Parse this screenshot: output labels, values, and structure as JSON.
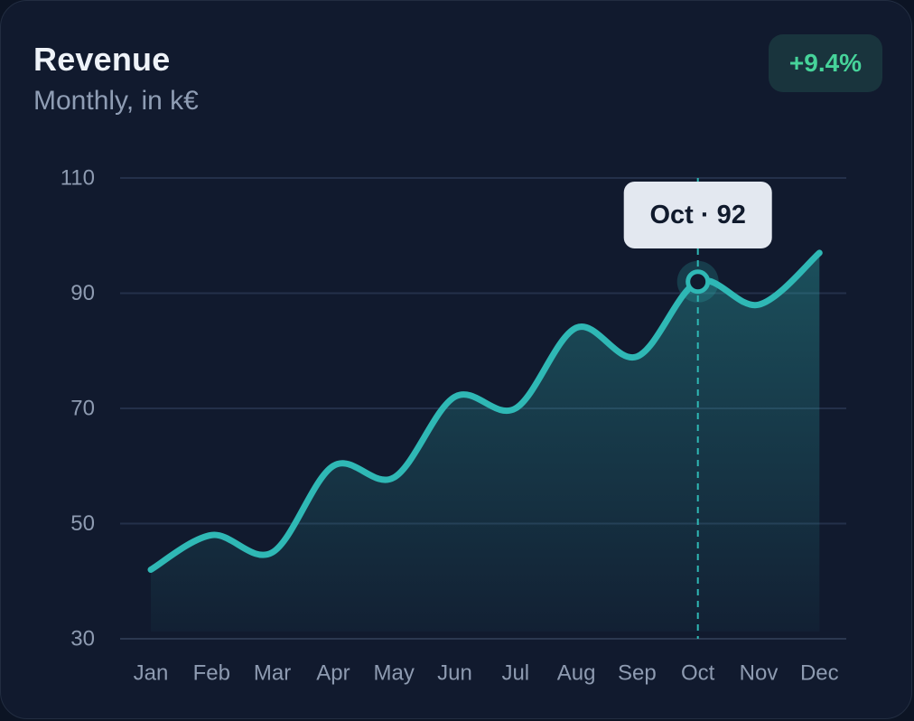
{
  "header": {
    "title": "Revenue",
    "subtitle": "Monthly, in k€",
    "change_badge": "+9.4%"
  },
  "tooltip": {
    "label": "Oct · 92"
  },
  "colors": {
    "background": "#111a2e",
    "line": "#2fb8b5",
    "badge_text": "#46d39a",
    "tooltip_bg": "#e3e8f0"
  },
  "chart_data": {
    "type": "area",
    "title": "Revenue",
    "subtitle": "Monthly, in k€",
    "categories": [
      "Jan",
      "Feb",
      "Mar",
      "Apr",
      "May",
      "Jun",
      "Jul",
      "Aug",
      "Sep",
      "Oct",
      "Nov",
      "Dec"
    ],
    "series": [
      {
        "values": [
          42,
          48,
          45,
          60,
          58,
          72,
          70,
          84,
          79,
          92,
          88,
          97
        ]
      }
    ],
    "y_ticks": [
      30,
      50,
      70,
      90,
      110
    ],
    "ylim": [
      30,
      110
    ],
    "grid": true,
    "smooth": true,
    "highlight": {
      "category": "Oct",
      "value": 92
    }
  }
}
